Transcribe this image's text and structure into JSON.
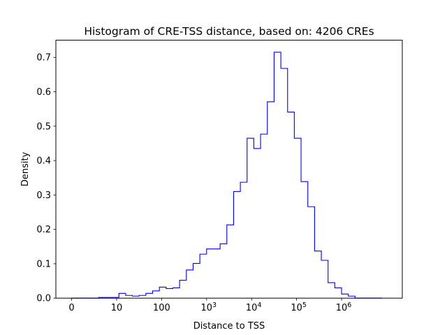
{
  "chart_data": {
    "type": "histogram",
    "title": "Histogram of CRE-TSS distance, based on: 4206 CREs",
    "xlabel": "Distance to TSS",
    "ylabel": "Density",
    "x_tick_labels": [
      {
        "base": "0",
        "exp": ""
      },
      {
        "base": "10",
        "exp": ""
      },
      {
        "base": "100",
        "exp": ""
      },
      {
        "base": "10",
        "exp": "3"
      },
      {
        "base": "10",
        "exp": "4"
      },
      {
        "base": "10",
        "exp": "5"
      },
      {
        "base": "10",
        "exp": "6"
      }
    ],
    "x_tick_positions": [
      0,
      1,
      2,
      3,
      4,
      5,
      6
    ],
    "x_axis_note": "log10(distance + 1) scale",
    "xlim": [
      -0.35,
      7.35
    ],
    "ylim": [
      0,
      0.75
    ],
    "y_ticks": [
      0.0,
      0.1,
      0.2,
      0.3,
      0.4,
      0.5,
      0.6,
      0.7
    ],
    "y_tick_labels": [
      "0.0",
      "0.1",
      "0.2",
      "0.3",
      "0.4",
      "0.5",
      "0.6",
      "0.7"
    ],
    "line_color": "#0000ff",
    "bin_edges": [
      0.0,
      0.15,
      0.3,
      0.45,
      0.6,
      0.75,
      0.9,
      1.05,
      1.2,
      1.35,
      1.5,
      1.65,
      1.8,
      1.95,
      2.1,
      2.25,
      2.4,
      2.55,
      2.7,
      2.85,
      3.0,
      3.15,
      3.3,
      3.45,
      3.6,
      3.75,
      3.9,
      4.05,
      4.2,
      4.35,
      4.5,
      4.65,
      4.8,
      4.95,
      5.1,
      5.25,
      5.4,
      5.55,
      5.7,
      5.85,
      6.0,
      6.15,
      6.3,
      6.45,
      6.6,
      6.75,
      6.9
    ],
    "densities": [
      0.0,
      0.0,
      0.0,
      0.0,
      0.002,
      0.002,
      0.002,
      0.014,
      0.008,
      0.006,
      0.008,
      0.014,
      0.021,
      0.032,
      0.028,
      0.03,
      0.052,
      0.082,
      0.101,
      0.128,
      0.143,
      0.143,
      0.158,
      0.213,
      0.31,
      0.337,
      0.465,
      0.435,
      0.477,
      0.571,
      0.715,
      0.668,
      0.541,
      0.465,
      0.339,
      0.266,
      0.137,
      0.11,
      0.045,
      0.03,
      0.012,
      0.006,
      0.0,
      0.0,
      0.0,
      0.0
    ]
  }
}
